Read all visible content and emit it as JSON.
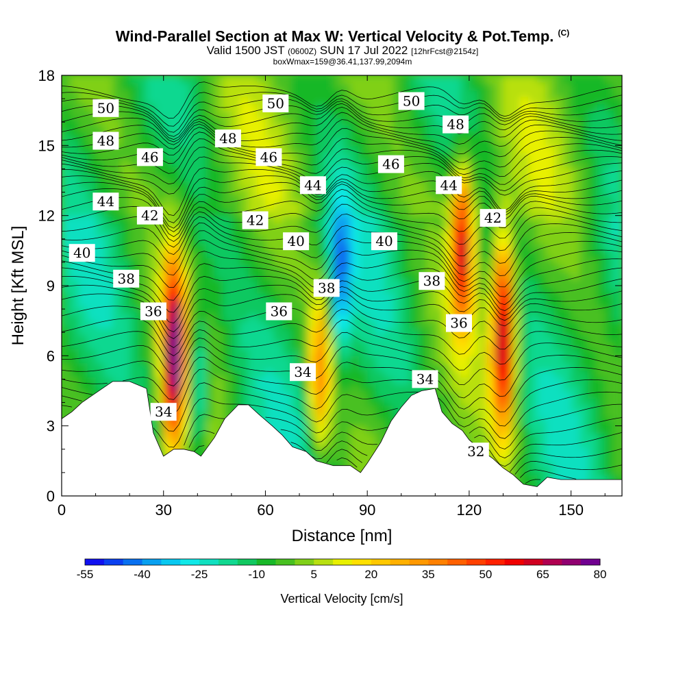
{
  "chart_data": {
    "type": "heatmap",
    "title": "Wind-Parallel Section at Max W: Vertical Velocity & Pot.Temp.",
    "title_mark": "(C)",
    "subtitle": "Valid 1500 JST",
    "subtitle_zulu": "(0600Z)",
    "subtitle_date": "SUN 17 Jul 2022",
    "subtitle_fcst": "[12hrFcst@2154z]",
    "subtitle2": "boxWmax=159@36.41,137.99,2094m",
    "xlabel": "Distance [nm]",
    "ylabel": "Height [Kft MSL]",
    "xlim": [
      0,
      165
    ],
    "ylim": [
      0,
      18
    ],
    "x_ticks": [
      0,
      30,
      60,
      90,
      120,
      150
    ],
    "y_ticks": [
      0,
      3,
      6,
      9,
      12,
      15,
      18
    ],
    "colorbar": {
      "title": "Vertical Velocity [cm/s]",
      "levels": [
        -55,
        -50,
        -45,
        -40,
        -35,
        -30,
        -25,
        -20,
        -15,
        -10,
        -5,
        0,
        5,
        10,
        15,
        20,
        25,
        30,
        35,
        40,
        45,
        50,
        55,
        60,
        65,
        70,
        75,
        80
      ],
      "tick_labels": [
        "-55",
        "-40",
        "-25",
        "-10",
        "5",
        "20",
        "35",
        "50",
        "65",
        "80"
      ],
      "colors": [
        "#1010f0",
        "#0a40f0",
        "#0870f0",
        "#08a0f0",
        "#08c8f0",
        "#10e8e8",
        "#10e0c0",
        "#10d890",
        "#10c860",
        "#18b828",
        "#48c020",
        "#80d018",
        "#b8e010",
        "#e8f000",
        "#ffe000",
        "#ffc800",
        "#ffb000",
        "#ff9800",
        "#ff8000",
        "#ff6000",
        "#ff4000",
        "#ff2000",
        "#f00000",
        "#d00020",
        "#b00050",
        "#900070",
        "#700090"
      ]
    },
    "vertical_velocity_max_cells": [
      {
        "x": 33,
        "y_top": 9.0,
        "y_bottom": 3.0,
        "peak": 80
      },
      {
        "x": 76,
        "y_top": 7.5,
        "y_bottom": 3.0,
        "peak": 40
      },
      {
        "x": 118,
        "y_top": 13.0,
        "y_bottom": 8.5,
        "peak": 65
      },
      {
        "x": 130,
        "y_top": 10.0,
        "y_bottom": 4.0,
        "peak": 75
      }
    ],
    "vertical_velocity_min_cells": [
      {
        "x": 40,
        "y_top": 7.0,
        "y_bottom": 3.0,
        "min": -25
      },
      {
        "x": 82,
        "y_top": 12.0,
        "y_bottom": 7.0,
        "min": -25
      }
    ],
    "terrain_profile": {
      "x": [
        0,
        3,
        6,
        9,
        12,
        15,
        20,
        25,
        27,
        30,
        33,
        36,
        39,
        41,
        45,
        48,
        52,
        55,
        58,
        62,
        65,
        68,
        72,
        75,
        80,
        85,
        88,
        90,
        94,
        97,
        100,
        103,
        106,
        110,
        112,
        115,
        118,
        120,
        124,
        127,
        130,
        133,
        136,
        140,
        143,
        147,
        150,
        155,
        160,
        165
      ],
      "height": [
        3.3,
        3.6,
        4.0,
        4.3,
        4.6,
        4.9,
        4.9,
        4.6,
        2.7,
        1.7,
        2.0,
        2.0,
        1.9,
        1.7,
        2.5,
        3.3,
        3.9,
        3.9,
        3.5,
        3.0,
        2.6,
        2.1,
        1.9,
        1.5,
        1.3,
        1.3,
        1.0,
        1.4,
        2.3,
        3.2,
        3.8,
        4.3,
        4.5,
        4.6,
        3.6,
        3.1,
        2.8,
        2.4,
        1.9,
        1.6,
        1.2,
        0.9,
        0.5,
        0.4,
        0.8,
        0.7,
        0.7,
        0.7,
        0.7,
        0.7
      ]
    },
    "theta_contour_labels": [
      {
        "text": "50",
        "x": 13,
        "y": 16.6
      },
      {
        "text": "48",
        "x": 13,
        "y": 15.2
      },
      {
        "text": "44",
        "x": 13,
        "y": 12.6
      },
      {
        "text": "40",
        "x": 6,
        "y": 10.4
      },
      {
        "text": "38",
        "x": 19,
        "y": 9.3
      },
      {
        "text": "36",
        "x": 27,
        "y": 7.9
      },
      {
        "text": "46",
        "x": 26,
        "y": 14.5
      },
      {
        "text": "42",
        "x": 26,
        "y": 12.0
      },
      {
        "text": "34",
        "x": 30,
        "y": 3.6
      },
      {
        "text": "48",
        "x": 49,
        "y": 15.3
      },
      {
        "text": "50",
        "x": 63,
        "y": 16.8
      },
      {
        "text": "46",
        "x": 61,
        "y": 14.5
      },
      {
        "text": "42",
        "x": 57,
        "y": 11.8
      },
      {
        "text": "40",
        "x": 69,
        "y": 10.9
      },
      {
        "text": "36",
        "x": 64,
        "y": 7.9
      },
      {
        "text": "44",
        "x": 74,
        "y": 13.3
      },
      {
        "text": "38",
        "x": 78,
        "y": 8.9
      },
      {
        "text": "34",
        "x": 71,
        "y": 5.3
      },
      {
        "text": "50",
        "x": 103,
        "y": 16.9
      },
      {
        "text": "46",
        "x": 97,
        "y": 14.2
      },
      {
        "text": "40",
        "x": 95,
        "y": 10.9
      },
      {
        "text": "48",
        "x": 116,
        "y": 15.9
      },
      {
        "text": "44",
        "x": 114,
        "y": 13.3
      },
      {
        "text": "42",
        "x": 127,
        "y": 11.9
      },
      {
        "text": "38",
        "x": 109,
        "y": 9.2
      },
      {
        "text": "36",
        "x": 117,
        "y": 7.4
      },
      {
        "text": "34",
        "x": 107,
        "y": 5.0
      },
      {
        "text": "32",
        "x": 122,
        "y": 1.9
      }
    ]
  }
}
